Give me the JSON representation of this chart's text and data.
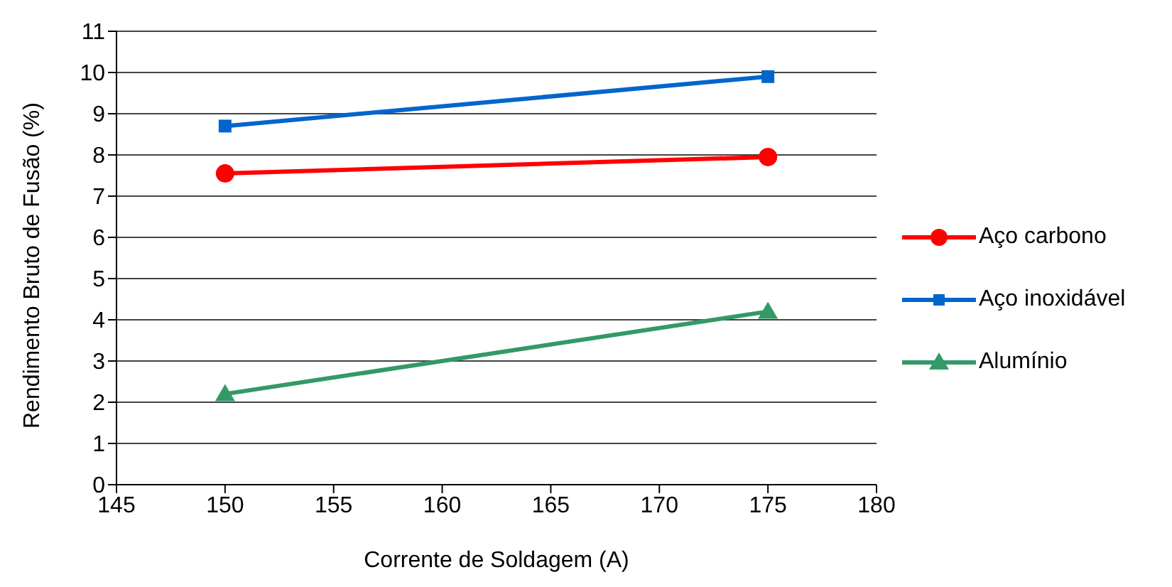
{
  "chart_data": {
    "type": "line",
    "xlabel": "Corrente de Soldagem (A)",
    "ylabel": "Rendimento Bruto de Fusão (%)",
    "x": [
      150,
      175
    ],
    "xlim": [
      145,
      180
    ],
    "xticks": [
      145,
      150,
      155,
      160,
      165,
      170,
      175,
      180
    ],
    "ylim": [
      0,
      11
    ],
    "yticks": [
      0,
      1,
      2,
      3,
      4,
      5,
      6,
      7,
      8,
      9,
      10,
      11
    ],
    "grid": "y",
    "legend": "right",
    "series": [
      {
        "name": "Aço carbono",
        "color": "#ff0000",
        "marker": "circle",
        "values": [
          7.55,
          7.95
        ]
      },
      {
        "name": "Aço inoxidável",
        "color": "#0066cc",
        "marker": "square",
        "values": [
          8.7,
          9.9
        ]
      },
      {
        "name": "Alumínio",
        "color": "#339966",
        "marker": "triangle",
        "values": [
          2.2,
          4.2
        ]
      }
    ]
  }
}
